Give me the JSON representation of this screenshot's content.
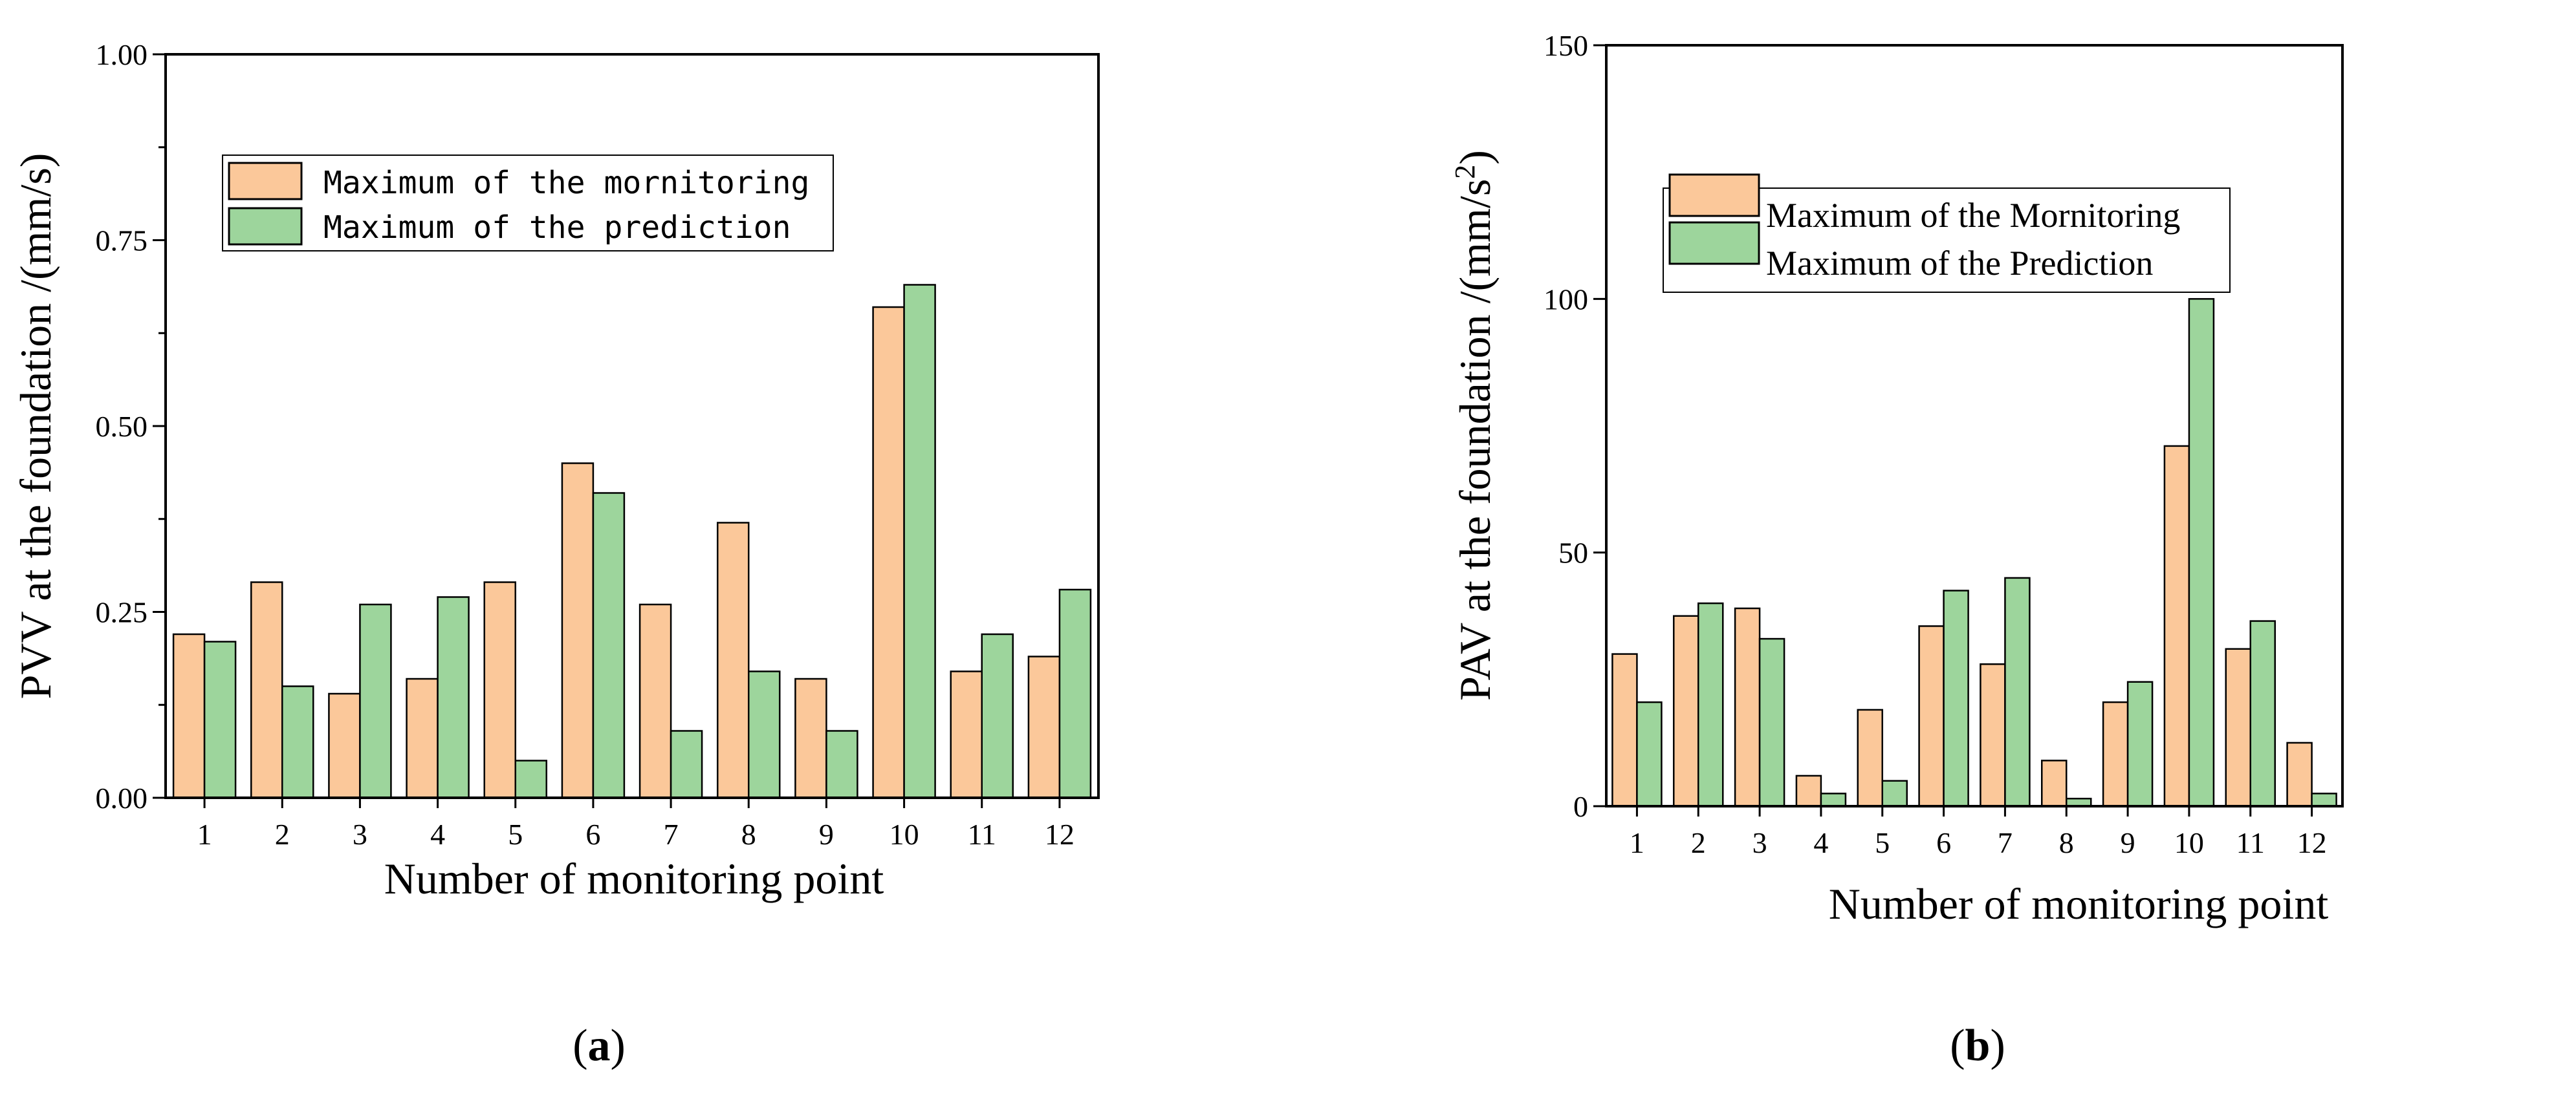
{
  "colors": {
    "monitoring": "#FBC89A",
    "prediction": "#9DD59C",
    "axis": "#000000"
  },
  "chart_data": [
    {
      "type": "bar",
      "panel_label_open": "(",
      "panel_label_letter": "a",
      "panel_label_close": ")",
      "xlabel": "Number of monitoring point",
      "ylabel": "PVV at the foundation /(mm/s)",
      "ylim": [
        0,
        1
      ],
      "yticks": [
        "0.00",
        "0.25",
        "0.50",
        "0.75",
        "1.00"
      ],
      "categories": [
        "1",
        "2",
        "3",
        "4",
        "5",
        "6",
        "7",
        "8",
        "9",
        "10",
        "11",
        "12"
      ],
      "legend_position": "upper-left",
      "series": [
        {
          "name": "Maximum of the mornitoring",
          "values": [
            0.22,
            0.29,
            0.14,
            0.16,
            0.29,
            0.45,
            0.26,
            0.37,
            0.16,
            0.66,
            0.17,
            0.19
          ]
        },
        {
          "name": "Maximum of the prediction",
          "values": [
            0.21,
            0.15,
            0.26,
            0.27,
            0.05,
            0.41,
            0.09,
            0.17,
            0.09,
            0.69,
            0.22,
            0.28
          ]
        }
      ]
    },
    {
      "type": "bar",
      "panel_label_open": "(",
      "panel_label_letter": "b",
      "panel_label_close": ")",
      "xlabel": "Number of monitoring point",
      "ylabel_main": "PAV at the foundation /(mm/s",
      "ylabel_sup": "2",
      "ylabel_end": ")",
      "ylim": [
        0,
        150
      ],
      "yticks": [
        "0",
        "50",
        "100",
        "150"
      ],
      "categories": [
        "1",
        "2",
        "3",
        "4",
        "5",
        "6",
        "7",
        "8",
        "9",
        "10",
        "11",
        "12"
      ],
      "legend_position": "upper-left",
      "series": [
        {
          "name": "Maximum of the Mornitoring",
          "values": [
            30,
            37.5,
            39,
            6,
            19,
            35.5,
            28,
            9,
            20.5,
            71,
            31,
            12.5
          ]
        },
        {
          "name": "Maximum of the Prediction",
          "values": [
            20.5,
            40,
            33,
            2.5,
            5,
            42.5,
            45,
            1.5,
            24.5,
            100,
            36.5,
            2.5
          ]
        }
      ]
    }
  ]
}
